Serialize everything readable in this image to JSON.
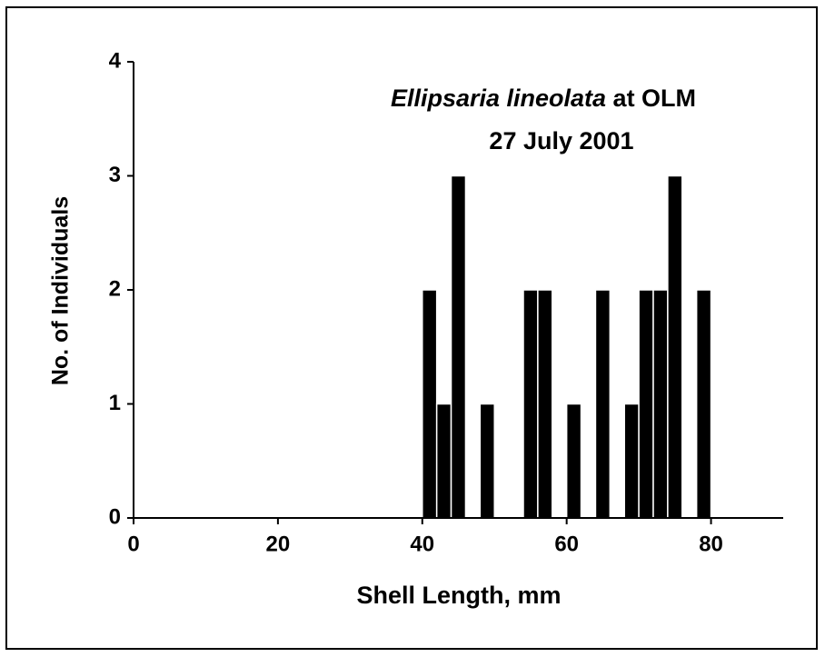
{
  "chart_data": {
    "type": "histogram",
    "title_species": "Ellipsaria lineolata",
    "title_suffix": "at OLM",
    "subtitle": "27 July 2001",
    "xlabel": "Shell Length, mm",
    "ylabel": "No. of Individuals",
    "bins": [
      40,
      42,
      44,
      46,
      48,
      50,
      52,
      54,
      56,
      58,
      60,
      62,
      64,
      66,
      68,
      70,
      72,
      74,
      76,
      78,
      80
    ],
    "counts": [
      2,
      1,
      3,
      0,
      1,
      0,
      0,
      2,
      2,
      0,
      1,
      0,
      2,
      0,
      1,
      2,
      2,
      3,
      0,
      2
    ],
    "color": "#000000",
    "xlim": [
      0,
      90
    ],
    "xticks": [
      0,
      20,
      40,
      60,
      80
    ],
    "ylim": [
      0,
      4
    ],
    "yticks": [
      0,
      1,
      2,
      3,
      4
    ]
  }
}
